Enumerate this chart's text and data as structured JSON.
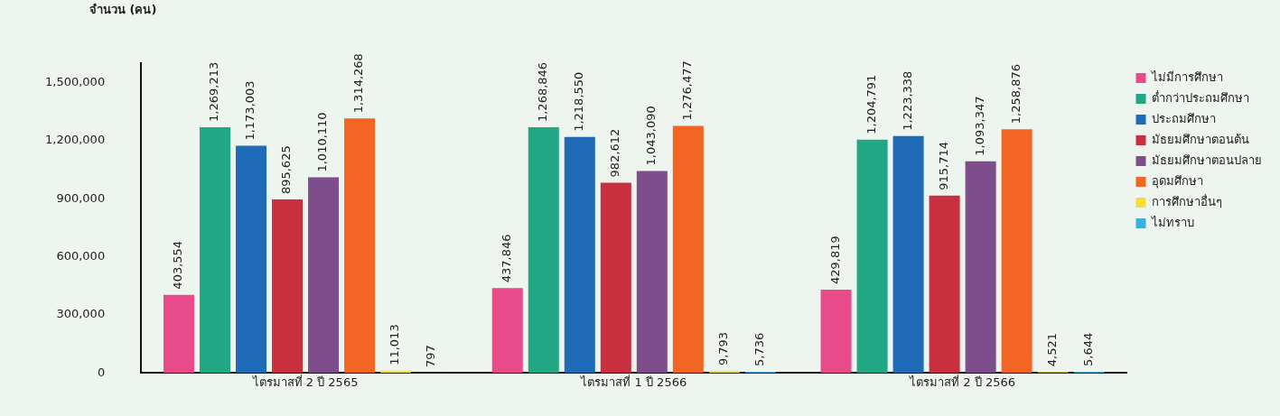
{
  "chart_data": {
    "type": "bar",
    "ylabel": "จำนวน (คน)",
    "categories": [
      "ไตรมาสที่ 2 ปี 2565",
      "ไตรมาสที่ 1 ปี 2566",
      "ไตรมาสที่ 2 ปี 2566"
    ],
    "series": [
      {
        "name": "ไม่มีการศึกษา",
        "color": "#e84a8a",
        "values": [
          403554,
          437846,
          429819
        ],
        "value_labels": [
          "403,554",
          "437,846",
          "429,819"
        ]
      },
      {
        "name": "ต่ำกว่าประถมศึกษา",
        "color": "#21a784",
        "values": [
          1269213,
          1268846,
          1204791
        ],
        "value_labels": [
          "1,269,213",
          "1,268,846",
          "1,204,791"
        ]
      },
      {
        "name": "ประถมศึกษา",
        "color": "#1f6bb8",
        "values": [
          1173003,
          1218550,
          1223338
        ],
        "value_labels": [
          "1,173,003",
          "1,218,550",
          "1,223,338"
        ]
      },
      {
        "name": "มัธยมศึกษาตอนต้น",
        "color": "#c8303f",
        "values": [
          895625,
          982612,
          915714
        ],
        "value_labels": [
          "895,625",
          "982,612",
          "915,714"
        ]
      },
      {
        "name": "มัธยมศึกษาตอนปลาย",
        "color": "#7e4e8c",
        "values": [
          1010110,
          1043090,
          1093347
        ],
        "value_labels": [
          "1,010,110",
          "1,043,090",
          "1,093,347"
        ]
      },
      {
        "name": "อุดมศึกษา",
        "color": "#f26522",
        "values": [
          1314268,
          1276477,
          1258876
        ],
        "value_labels": [
          "1,314,268",
          "1,276,477",
          "1,258,876"
        ]
      },
      {
        "name": "การศึกษาอื่นๆ",
        "color": "#f5e03a",
        "values": [
          11013,
          9793,
          4521
        ],
        "value_labels": [
          "11,013",
          "9,793",
          "4,521"
        ]
      },
      {
        "name": "ไม่ทราบ",
        "color": "#3ab0e2",
        "values": [
          797,
          5736,
          5644
        ],
        "value_labels": [
          "797",
          "5,736",
          "5,644"
        ]
      }
    ],
    "ylim": [
      0,
      1600000
    ],
    "yticks": [
      0,
      {
        "value": 300000,
        "label": "300,000"
      },
      {
        "value": 600000,
        "label": "600,000"
      },
      {
        "value": 900000,
        "label": "900,000"
      },
      {
        "value": 1200000,
        "label": "1,200,000"
      },
      {
        "value": 1500000,
        "label": "1,500,000"
      }
    ],
    "grid": false,
    "legend": "top right"
  }
}
